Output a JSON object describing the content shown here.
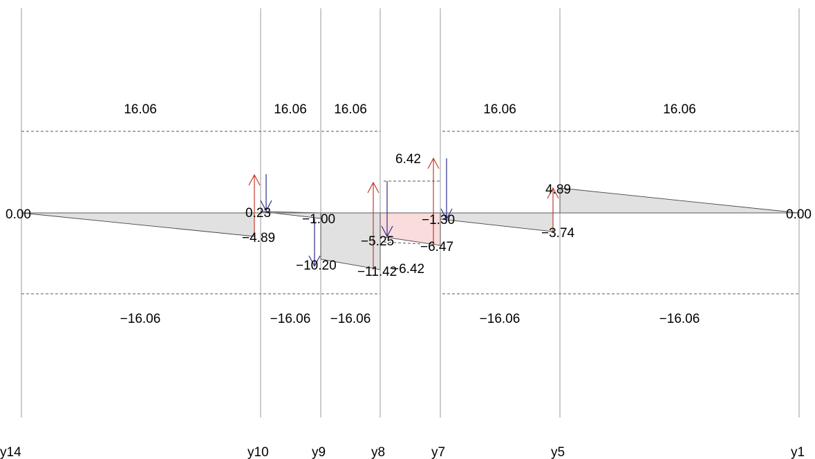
{
  "gridlines": [
    {
      "label": "y14"
    },
    {
      "label": "y10"
    },
    {
      "label": "y9"
    },
    {
      "label": "y8"
    },
    {
      "label": "y7"
    },
    {
      "label": "y5"
    },
    {
      "label": "y1"
    }
  ],
  "upper_limits": [
    "16.06",
    "16.06",
    "16.06",
    "16.06",
    "16.06"
  ],
  "lower_limits": [
    "−16.06",
    "−16.06",
    "−16.06",
    "−16.06",
    "−16.06"
  ],
  "value_labels": {
    "left_end": "0.00",
    "right_end": "0.00",
    "y10_top": "0.23",
    "y10_bottom": "−4.89",
    "y9_top": "−1.00",
    "y9_bottom": "−10.20",
    "y8_bottom": "−11.42",
    "y8_left": "−5.25",
    "y8_mid": "−6.42",
    "y7_top": "−1.30",
    "y7_bottom": "−6.47",
    "peak": "6.42",
    "y5_top": "4.89",
    "y5_bottom": "−3.74"
  },
  "colors": {
    "fill": "#e1e1e1",
    "fill_highlight": "#fadcdc",
    "arrow_up": "#c0392b",
    "arrow_down": "#2c2c8c"
  }
}
